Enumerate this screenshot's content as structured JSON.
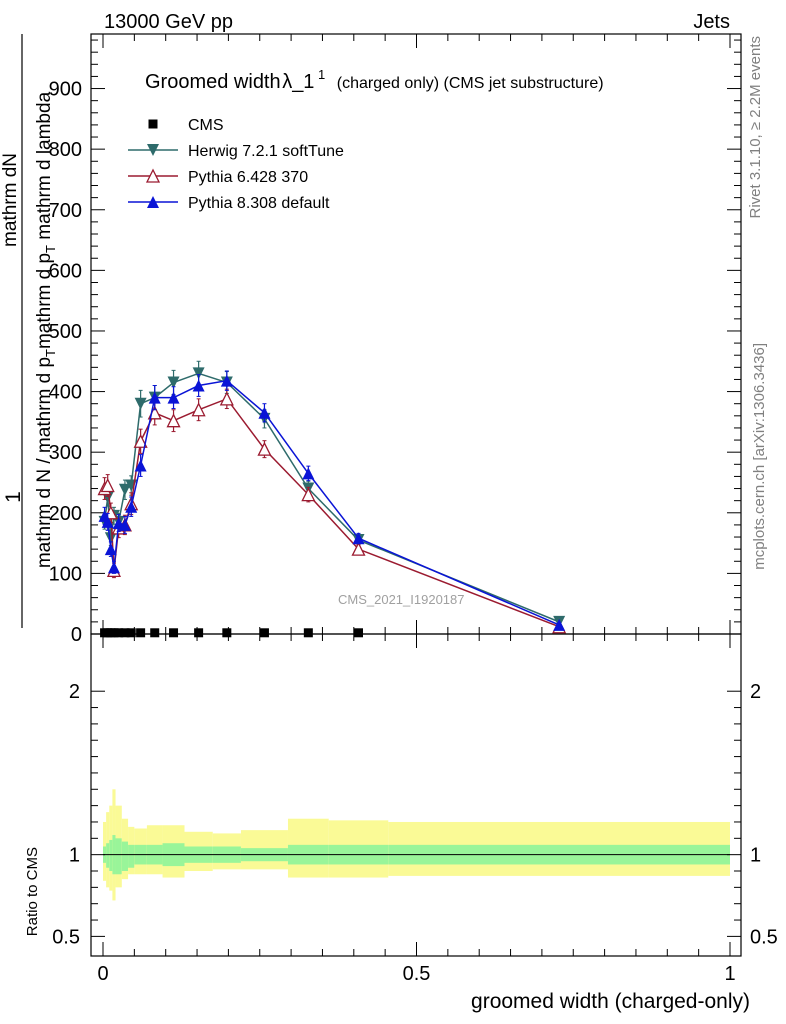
{
  "header": {
    "energy_label": "13000 GeV pp",
    "category_label": "Jets"
  },
  "side_labels": {
    "rivet": "Rivet 3.1.10, ≥ 2.2M events",
    "mcplots": "mcplots.cern.ch [arXiv:1306.3436]"
  },
  "watermark": "CMS_2021_I1920187",
  "chart_data": [
    {
      "type": "line",
      "title_main": "Groomed width",
      "title_lambda": "λ_1",
      "title_sup": "1",
      "title_suffix": "(charged only) (CMS jet substructure)",
      "ylabel_top": "1",
      "ylabel_den": "mathrm d N / mathrm d p",
      "ylabel_num": "mathrm d",
      "ylabel_num_sub": "T",
      "ylabel_rest": "mathrm d N",
      "ylabel_full_num": "mathrm d",
      "ylabel_full": {
        "numerator": "mathrm d",
        "numerator_n": "N",
        "den_a": "mathrm d p",
        "den_a_sub": "T",
        "den_b": "mathrm d lambda"
      },
      "xlim": [
        0,
        1
      ],
      "ylim": [
        0,
        990
      ],
      "yticks": [
        0,
        100,
        200,
        300,
        400,
        500,
        600,
        700,
        800,
        900
      ],
      "grid": false,
      "legend_placement": "top-left",
      "series": [
        {
          "name": "CMS",
          "color": "#000000",
          "marker": "square",
          "x": [
            0.0025,
            0.0075,
            0.0125,
            0.0175,
            0.025,
            0.035,
            0.045,
            0.06,
            0.0825,
            0.1125,
            0.1525,
            0.1975,
            0.2575,
            0.3275,
            0.4075
          ],
          "y": [
            2,
            2,
            2,
            2,
            2,
            2,
            2,
            2,
            2,
            2,
            2,
            2,
            2,
            2,
            2
          ]
        },
        {
          "name": "Herwig 7.2.1 softTune",
          "color": "#2e6b6b",
          "marker": "triangle-down",
          "x": [
            0.0025,
            0.0075,
            0.0125,
            0.0175,
            0.025,
            0.035,
            0.045,
            0.06,
            0.0825,
            0.1125,
            0.1525,
            0.1975,
            0.2575,
            0.3275,
            0.4075,
            0.7275
          ],
          "y": [
            185,
            225,
            158,
            195,
            185,
            238,
            245,
            380,
            390,
            415,
            430,
            415,
            355,
            240,
            155,
            20
          ],
          "err": [
            12,
            14,
            12,
            14,
            14,
            16,
            16,
            22,
            20,
            20,
            20,
            18,
            15,
            12,
            8,
            3
          ]
        },
        {
          "name": "Pythia 6.428 370",
          "color": "#9b1b30",
          "marker": "triangle-up-open",
          "x": [
            0.0025,
            0.0075,
            0.0125,
            0.0175,
            0.025,
            0.035,
            0.045,
            0.06,
            0.0825,
            0.1125,
            0.1525,
            0.1975,
            0.2575,
            0.3275,
            0.4075,
            0.7275
          ],
          "y": [
            240,
            245,
            200,
            105,
            175,
            180,
            215,
            318,
            365,
            352,
            370,
            388,
            305,
            230,
            140,
            12
          ],
          "err": [
            18,
            18,
            16,
            12,
            16,
            16,
            18,
            20,
            20,
            18,
            18,
            16,
            14,
            12,
            8,
            3
          ]
        },
        {
          "name": "Pythia 8.308 default",
          "color": "#0a14d6",
          "marker": "triangle-up",
          "x": [
            0.0025,
            0.0075,
            0.0125,
            0.0175,
            0.025,
            0.035,
            0.045,
            0.06,
            0.0825,
            0.1125,
            0.1525,
            0.1975,
            0.2575,
            0.3275,
            0.4075,
            0.7275
          ],
          "y": [
            195,
            185,
            140,
            110,
            183,
            180,
            210,
            278,
            390,
            390,
            410,
            418,
            365,
            265,
            158,
            15
          ],
          "err": [
            14,
            14,
            12,
            10,
            14,
            14,
            16,
            18,
            20,
            18,
            18,
            16,
            15,
            12,
            8,
            3
          ]
        }
      ]
    },
    {
      "type": "area",
      "ylabel": "Ratio to CMS",
      "xlabel": "groomed width (charged-only)",
      "xlim": [
        0,
        1
      ],
      "ylim": [
        0.38,
        2.35
      ],
      "yticks": [
        0.5,
        1,
        2
      ],
      "ytick_labels": [
        "0.5",
        "1",
        "2"
      ],
      "xticks": [
        0,
        0.5,
        1
      ],
      "xtick_labels": [
        "0",
        "0.5",
        "1"
      ],
      "reference_line": 1,
      "band_colors": {
        "inner": "#99f599",
        "outer": "#fafa96"
      },
      "bins": [
        0,
        0.005,
        0.01,
        0.015,
        0.02,
        0.03,
        0.04,
        0.05,
        0.07,
        0.095,
        0.13,
        0.175,
        0.22,
        0.295,
        0.36,
        0.455,
        1.0
      ],
      "inner_lo": [
        0.95,
        0.92,
        0.9,
        0.88,
        0.88,
        0.9,
        0.92,
        0.94,
        0.94,
        0.93,
        0.95,
        0.95,
        0.96,
        0.94,
        0.94,
        0.94
      ],
      "inner_hi": [
        1.05,
        1.07,
        1.09,
        1.12,
        1.1,
        1.08,
        1.06,
        1.06,
        1.06,
        1.07,
        1.05,
        1.05,
        1.04,
        1.06,
        1.06,
        1.06
      ],
      "outer_lo": [
        0.84,
        0.8,
        0.78,
        0.72,
        0.8,
        0.85,
        0.88,
        0.88,
        0.88,
        0.86,
        0.9,
        0.91,
        0.91,
        0.86,
        0.86,
        0.87
      ],
      "outer_hi": [
        1.2,
        1.26,
        1.3,
        1.4,
        1.3,
        1.22,
        1.17,
        1.16,
        1.18,
        1.18,
        1.14,
        1.13,
        1.15,
        1.22,
        1.21,
        1.2
      ]
    }
  ]
}
